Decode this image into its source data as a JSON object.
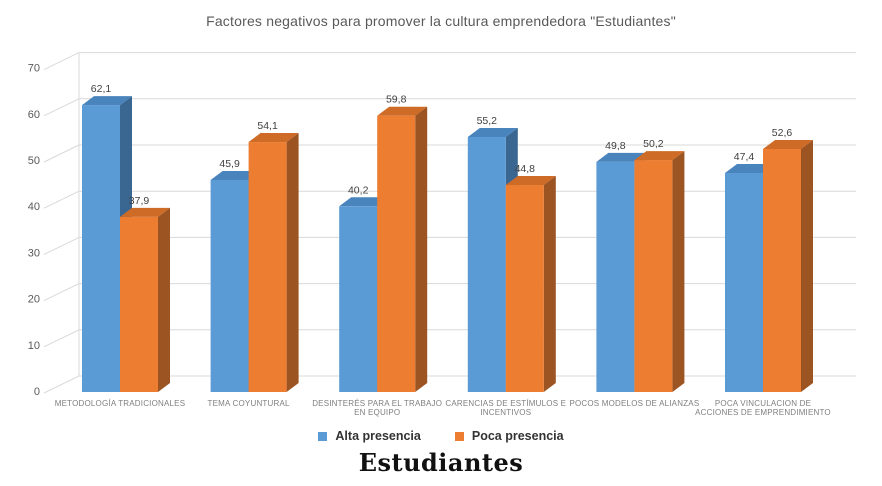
{
  "chart_data": {
    "type": "bar",
    "style": "3d-clustered-column",
    "title": "Factores negativos para promover la cultura emprendedora \"Estudiantes\"",
    "bottom_title": "Estudiantes",
    "categories": [
      {
        "name": "METODOLOGÍA TRADICIONALES",
        "label_lines": [
          "METODOLOGÍA TRADICIONALES"
        ]
      },
      {
        "name": "TEMA COYUNTURAL",
        "label_lines": [
          "TEMA COYUNTURAL"
        ]
      },
      {
        "name": "DESINTERÉS PARA EL TRABAJO EN EQUIPO",
        "label_lines": [
          "DESINTERÉS PARA EL TRABAJO",
          "EN EQUIPO"
        ]
      },
      {
        "name": "CARENCIAS DE ESTÍMULOS E INCENTIVOS",
        "label_lines": [
          "CARENCIAS DE ESTÍMULOS E",
          "INCENTIVOS"
        ]
      },
      {
        "name": "POCOS MODELOS DE ALIANZAS",
        "label_lines": [
          "POCOS MODELOS DE ALIANZAS"
        ]
      },
      {
        "name": "POCA VINCULACION DE ACCIONES DE EMPRENDIMIENTO",
        "label_lines": [
          "POCA VINCULACION DE",
          "ACCIONES DE EMPRENDIMIENTO"
        ]
      }
    ],
    "series": [
      {
        "name": "Alta presencia",
        "values": [
          62.1,
          45.9,
          40.2,
          55.2,
          49.8,
          47.4
        ],
        "data_labels": [
          "62,1",
          "45,9",
          "40,2",
          "55,2",
          "49,8",
          "47,4"
        ],
        "color_front": "#5B9BD5",
        "color_top": "#4A84BC",
        "color_side": "#3A6792"
      },
      {
        "name": "Poca presencia",
        "values": [
          37.9,
          54.1,
          59.8,
          44.8,
          50.2,
          52.6
        ],
        "data_labels": [
          "37,9",
          "54,1",
          "59,8",
          "44,8",
          "50,2",
          "52,6"
        ],
        "color_front": "#ED7D31",
        "color_top": "#CE6B27",
        "color_side": "#9C5423"
      }
    ],
    "y_ticks": [
      0,
      10,
      20,
      30,
      40,
      50,
      60,
      70
    ],
    "ylim": [
      0,
      70
    ],
    "grid": true,
    "grid_color": "#D9D9D9",
    "axis_text_color": "#595959",
    "data_label_color": "#404040",
    "category_label_color": "#7F7F7F",
    "legend_position": "bottom"
  }
}
